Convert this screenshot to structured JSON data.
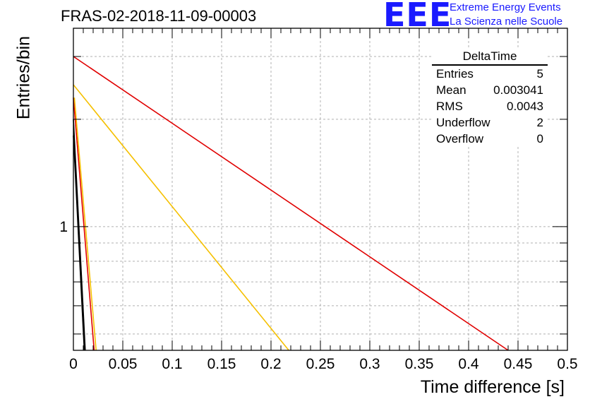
{
  "title": "FRAS-02-2018-11-09-00003",
  "logo": {
    "mark": "EEE",
    "line1": "Extreme Energy Events",
    "line2": "La Scienza nelle Scuole",
    "color": "#1a1aff"
  },
  "stats": {
    "name": "DeltaTime",
    "rows": [
      {
        "label": "Entries",
        "value": "5"
      },
      {
        "label": "Mean",
        "value": "0.003041"
      },
      {
        "label": "RMS",
        "value": "0.0043"
      },
      {
        "label": "Underflow",
        "value": "2"
      },
      {
        "label": "Overflow",
        "value": "0"
      }
    ]
  },
  "chart_data": {
    "type": "line",
    "title": "FRAS-02-2018-11-09-00003",
    "xlabel": "Time difference [s]",
    "ylabel": "Entries/bin",
    "xlim": [
      0,
      0.5
    ],
    "ylim": [
      0.45,
      3.6
    ],
    "log_y": true,
    "grid": true,
    "x_ticks": [
      "0",
      "0.05",
      "0.1",
      "0.15",
      "0.2",
      "0.25",
      "0.3",
      "0.35",
      "0.4",
      "0.45",
      "0.5"
    ],
    "y_tick_labels": [
      {
        "value": 1,
        "label": "1"
      }
    ],
    "series": [
      {
        "color": "#e00000",
        "points": [
          [
            0,
            3.0
          ],
          [
            0.44,
            0.45
          ]
        ]
      },
      {
        "color": "#f5c000",
        "points": [
          [
            0,
            2.5
          ],
          [
            0.218,
            0.45
          ]
        ]
      },
      {
        "color": "#e00000",
        "points": [
          [
            0,
            2.3
          ],
          [
            0.021,
            0.45
          ]
        ]
      },
      {
        "color": "#f5c000",
        "points": [
          [
            0.001,
            2.3
          ],
          [
            0.023,
            0.45
          ]
        ]
      },
      {
        "color": "#000000",
        "points": [
          [
            0,
            2.0
          ],
          [
            0.012,
            0.45
          ]
        ]
      },
      {
        "color": "#000000",
        "points": [
          [
            0,
            1.8
          ],
          [
            0.011,
            0.45
          ]
        ]
      }
    ]
  }
}
